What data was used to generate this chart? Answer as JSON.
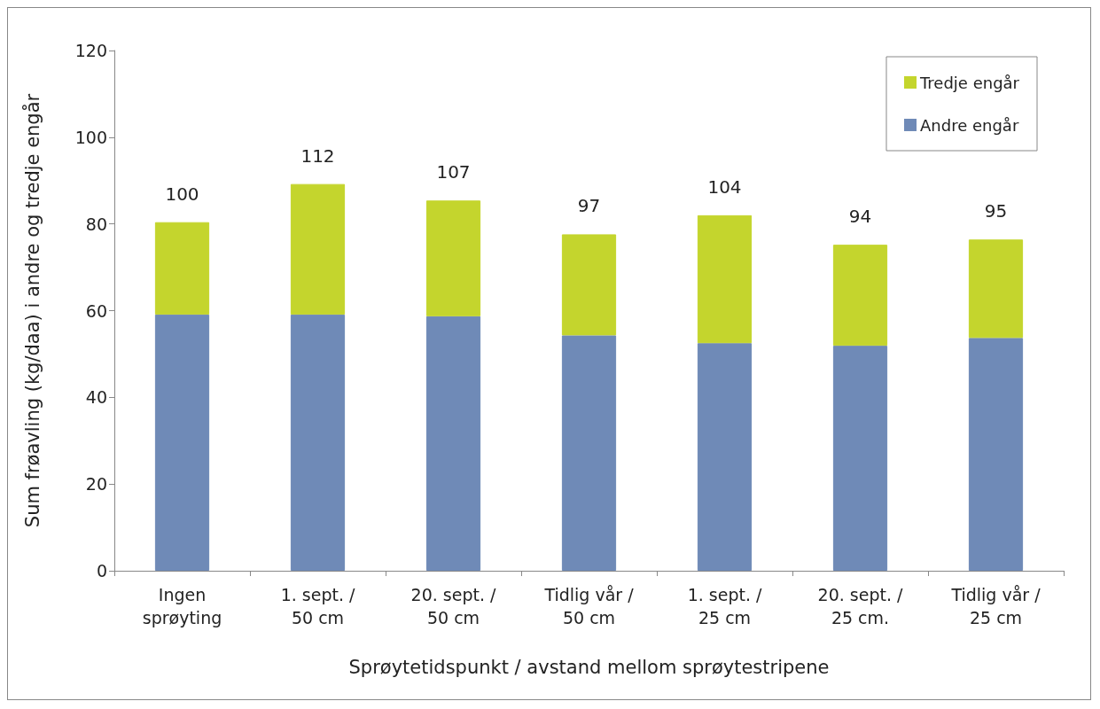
{
  "chart_data": {
    "type": "bar",
    "stacked": true,
    "xlabel": "Sprøytetidspunkt / avstand mellom sprøytestripene",
    "ylabel": "Sum frøavling (kg/daa) i andre og tredje engår",
    "categories": [
      "Ingen\nsprøyting",
      "1. sept. /\n50 cm",
      "20. sept. /\n50 cm",
      "Tidlig vår /\n50 cm",
      "1. sept. /\n25 cm",
      "20. sept. /\n25 cm.",
      "Tidlig vår /\n25 cm"
    ],
    "series": [
      {
        "name": "Andre engår",
        "color": "#6f8ab7",
        "values": [
          59.1,
          59.1,
          58.7,
          54.3,
          52.5,
          51.9,
          53.7
        ]
      },
      {
        "name": "Tredje engår",
        "color": "#c4d52d",
        "values": [
          21.3,
          30.1,
          26.7,
          23.3,
          29.5,
          23.3,
          22.7
        ]
      }
    ],
    "annotations": [
      {
        "text": "100",
        "x": "Ingen\nsprøyting",
        "y": 80.4
      },
      {
        "text": "112",
        "x": "1. sept. /\n50 cm",
        "y": 89.2
      },
      {
        "text": "107",
        "x": "20. sept. /\n50 cm",
        "y": 85.4
      },
      {
        "text": "97",
        "x": "Tidlig vår /\n50 cm",
        "y": 77.6
      },
      {
        "text": "104",
        "x": "1. sept. /\n25 cm",
        "y": 82.0
      },
      {
        "text": "94",
        "x": "20. sept. /\n25 cm.",
        "y": 75.2
      },
      {
        "text": "95",
        "x": "Tidlig vår /\n25 cm",
        "y": 76.4
      }
    ],
    "ylim": [
      0,
      120
    ],
    "yticks": [
      0,
      20,
      40,
      60,
      80,
      100,
      120
    ],
    "grid": false,
    "legend": "top right"
  }
}
